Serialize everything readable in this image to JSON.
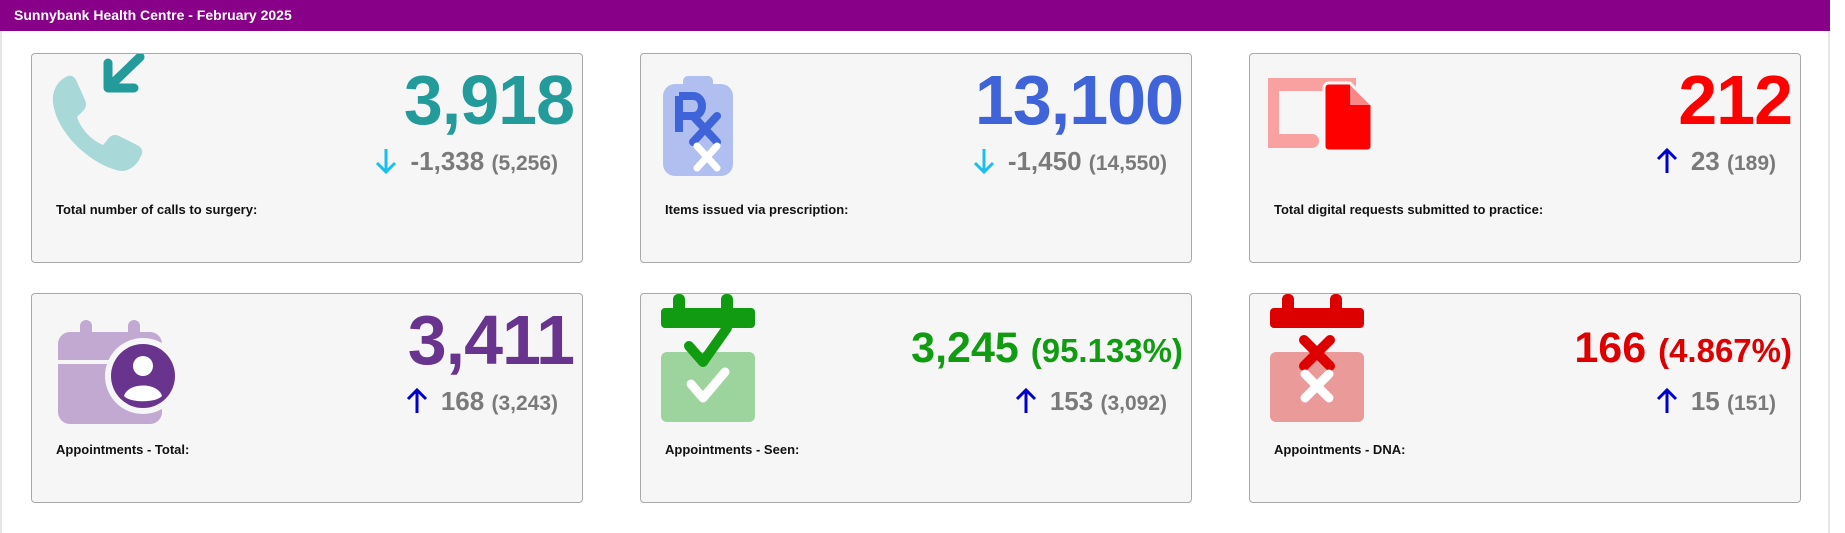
{
  "header": {
    "title": "Sunnybank Health Centre - February 2025"
  },
  "cards": [
    {
      "label": "Total number of calls to surgery:",
      "value": "3,918",
      "change": "-1,338",
      "previous": "(5,256)",
      "direction": "down",
      "value_color": "#239b9b",
      "icon": "phone-incoming-icon"
    },
    {
      "label": "Items issued via prescription:",
      "value": "13,100",
      "change": "-1,450",
      "previous": "(14,550)",
      "direction": "down",
      "value_color": "#3f63d8",
      "icon": "prescription-icon"
    },
    {
      "label": "Total digital requests submitted to practice:",
      "value": "212",
      "change": "23",
      "previous": "(189)",
      "direction": "up",
      "value_color": "#ff0000",
      "icon": "digital-request-icon"
    },
    {
      "label": "Appointments - Total:",
      "value": "3,411",
      "change": "168",
      "previous": "(3,243)",
      "direction": "up",
      "value_color": "#68348e",
      "icon": "calendar-user-icon"
    },
    {
      "label": "Appointments - Seen:",
      "value": "3,245",
      "percent": "(95.133%)",
      "change": "153",
      "previous": "(3,092)",
      "direction": "up",
      "value_color": "#119b11",
      "icon": "calendar-check-icon"
    },
    {
      "label": "Appointments - DNA:",
      "value": "166",
      "percent": "(4.867%)",
      "change": "15",
      "previous": "(151)",
      "direction": "up",
      "value_color": "#dd0000",
      "icon": "calendar-cross-icon"
    }
  ],
  "colors": {
    "header_bg": "#870087",
    "arrow_down": "#19c0ee",
    "arrow_up": "#0000cc",
    "change_text": "#7a7a7a"
  }
}
